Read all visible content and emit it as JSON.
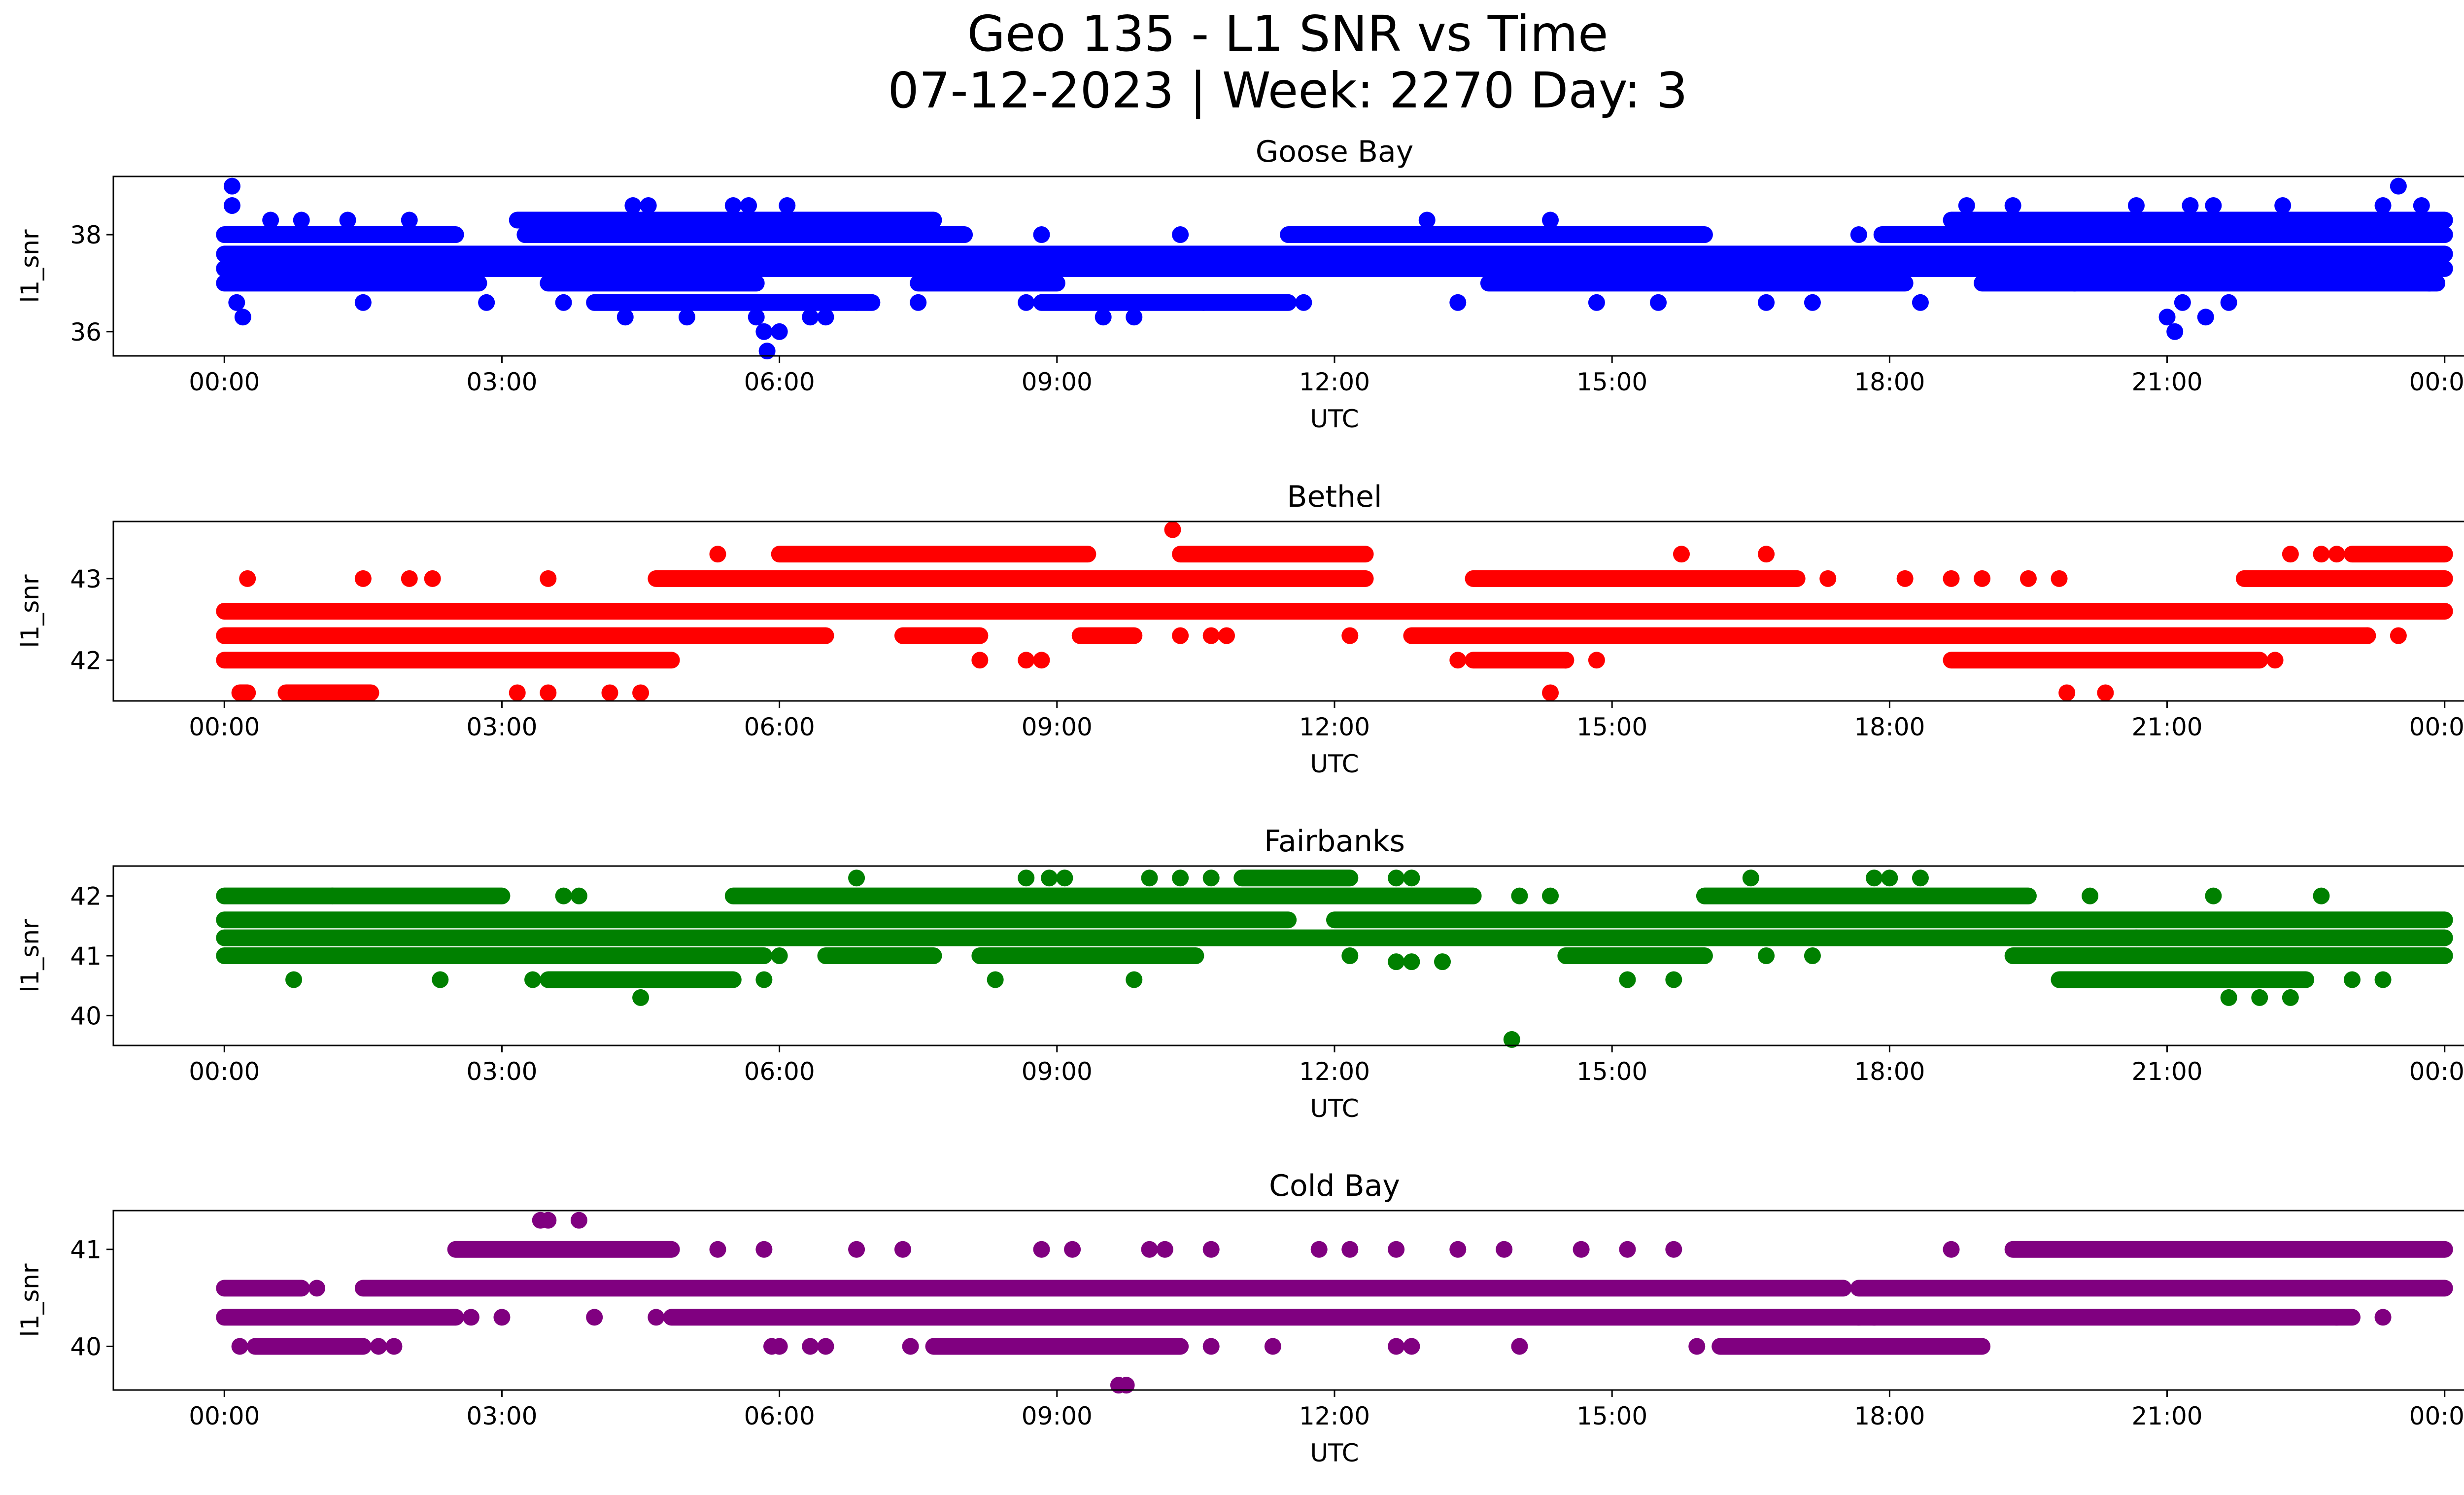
{
  "figure": {
    "title_line1": "Geo 135 - L1 SNR vs Time",
    "title_line2": "07-12-2023 | Week: 2270 Day: 3"
  },
  "chart_data": [
    {
      "type": "scatter",
      "title": "Goose Bay",
      "xlabel": "UTC",
      "ylabel": "l1_snr",
      "color": "#0000ff",
      "xlim": [
        "00:00",
        "24:00"
      ],
      "ylim": [
        35.5,
        39.2
      ],
      "x_ticks": [
        "00:00",
        "03:00",
        "06:00",
        "09:00",
        "12:00",
        "15:00",
        "18:00",
        "21:00",
        "00:00"
      ],
      "y_ticks": [
        36,
        38
      ],
      "levels": [
        36.3,
        36.6,
        37.0,
        37.3,
        37.6,
        38.0,
        38.3,
        38.6,
        39.0
      ],
      "bands": [
        {
          "y": 37.3,
          "segments": [
            [
              "00:00",
              "24:00"
            ]
          ]
        },
        {
          "y": 37.6,
          "segments": [
            [
              "00:00",
              "24:00"
            ]
          ]
        },
        {
          "y": 37.0,
          "segments": [
            [
              "00:00",
              "02:45"
            ],
            [
              "03:30",
              "05:45"
            ],
            [
              "07:30",
              "09:00"
            ],
            [
              "13:40",
              "18:10"
            ],
            [
              "19:00",
              "23:55"
            ]
          ]
        },
        {
          "y": 38.0,
          "segments": [
            [
              "00:00",
              "02:30"
            ],
            [
              "03:15",
              "08:00"
            ],
            [
              "11:30",
              "16:00"
            ],
            [
              "17:55",
              "24:00"
            ]
          ]
        },
        {
          "y": 36.6,
          "segments": [
            [
              "04:00",
              "07:00"
            ],
            [
              "08:50",
              "11:30"
            ]
          ]
        },
        {
          "y": 38.3,
          "segments": [
            [
              "03:10",
              "07:40"
            ],
            [
              "18:40",
              "24:00"
            ]
          ]
        }
      ],
      "points": [
        [
          "00:05",
          39.0
        ],
        [
          "00:05",
          38.6
        ],
        [
          "00:08",
          36.6
        ],
        [
          "00:12",
          36.3
        ],
        [
          "00:30",
          38.3
        ],
        [
          "00:50",
          38.3
        ],
        [
          "01:20",
          38.3
        ],
        [
          "01:30",
          36.6
        ],
        [
          "02:00",
          38.3
        ],
        [
          "02:50",
          36.6
        ],
        [
          "03:20",
          38.3
        ],
        [
          "03:40",
          36.6
        ],
        [
          "04:20",
          36.3
        ],
        [
          "04:25",
          38.6
        ],
        [
          "04:35",
          38.6
        ],
        [
          "05:00",
          36.3
        ],
        [
          "05:30",
          38.6
        ],
        [
          "05:40",
          38.6
        ],
        [
          "05:45",
          36.3
        ],
        [
          "05:50",
          36.0
        ],
        [
          "05:52",
          35.6
        ],
        [
          "06:00",
          36.0
        ],
        [
          "06:05",
          38.6
        ],
        [
          "06:20",
          36.3
        ],
        [
          "06:30",
          36.3
        ],
        [
          "06:50",
          36.6
        ],
        [
          "07:30",
          36.6
        ],
        [
          "08:40",
          36.6
        ],
        [
          "08:50",
          38.0
        ],
        [
          "09:30",
          36.3
        ],
        [
          "09:50",
          36.3
        ],
        [
          "10:20",
          38.0
        ],
        [
          "10:35",
          36.6
        ],
        [
          "11:40",
          36.6
        ],
        [
          "12:30",
          38.0
        ],
        [
          "13:00",
          38.3
        ],
        [
          "13:20",
          36.6
        ],
        [
          "14:20",
          38.3
        ],
        [
          "14:50",
          36.6
        ],
        [
          "15:30",
          36.6
        ],
        [
          "16:40",
          36.6
        ],
        [
          "17:10",
          36.6
        ],
        [
          "17:40",
          38.0
        ],
        [
          "18:20",
          36.6
        ],
        [
          "18:50",
          38.6
        ],
        [
          "19:20",
          38.6
        ],
        [
          "20:00",
          37.0
        ],
        [
          "20:40",
          38.6
        ],
        [
          "21:00",
          36.3
        ],
        [
          "21:05",
          36.0
        ],
        [
          "21:10",
          36.6
        ],
        [
          "21:15",
          38.6
        ],
        [
          "21:25",
          36.3
        ],
        [
          "21:30",
          38.6
        ],
        [
          "21:40",
          36.6
        ],
        [
          "22:15",
          38.6
        ],
        [
          "23:00",
          38.3
        ],
        [
          "23:20",
          38.6
        ],
        [
          "23:30",
          39.0
        ],
        [
          "23:45",
          38.6
        ],
        [
          "23:50",
          37.0
        ]
      ]
    },
    {
      "type": "scatter",
      "title": "Bethel",
      "xlabel": "UTC",
      "ylabel": "l1_snr",
      "color": "#ff0000",
      "xlim": [
        "00:00",
        "24:00"
      ],
      "ylim": [
        41.5,
        43.7
      ],
      "x_ticks": [
        "00:00",
        "03:00",
        "06:00",
        "09:00",
        "12:00",
        "15:00",
        "18:00",
        "21:00",
        "00:00"
      ],
      "y_ticks": [
        42,
        43
      ],
      "levels": [
        41.6,
        42.0,
        42.3,
        42.6,
        43.0,
        43.3,
        43.6
      ],
      "bands": [
        {
          "y": 42.3,
          "segments": [
            [
              "00:00",
              "06:30"
            ],
            [
              "07:20",
              "08:10"
            ],
            [
              "09:15",
              "09:50"
            ],
            [
              "12:50",
              "23:10"
            ]
          ]
        },
        {
          "y": 42.6,
          "segments": [
            [
              "00:00",
              "24:00"
            ]
          ]
        },
        {
          "y": 42.0,
          "segments": [
            [
              "00:00",
              "04:50"
            ],
            [
              "13:30",
              "14:30"
            ],
            [
              "18:40",
              "22:00"
            ]
          ]
        },
        {
          "y": 43.0,
          "segments": [
            [
              "04:40",
              "12:20"
            ],
            [
              "13:30",
              "17:00"
            ],
            [
              "21:50",
              "24:00"
            ]
          ]
        },
        {
          "y": 43.3,
          "segments": [
            [
              "06:00",
              "09:20"
            ],
            [
              "10:20",
              "12:20"
            ],
            [
              "23:00",
              "24:00"
            ]
          ]
        },
        {
          "y": 41.6,
          "segments": [
            [
              "00:10",
              "00:15"
            ],
            [
              "00:40",
              "01:35"
            ]
          ]
        }
      ],
      "points": [
        [
          "00:15",
          43.0
        ],
        [
          "01:30",
          43.0
        ],
        [
          "02:00",
          43.0
        ],
        [
          "02:15",
          43.0
        ],
        [
          "03:10",
          41.6
        ],
        [
          "03:30",
          43.0
        ],
        [
          "03:30",
          41.6
        ],
        [
          "04:10",
          41.6
        ],
        [
          "04:30",
          41.6
        ],
        [
          "05:20",
          43.3
        ],
        [
          "08:10",
          42.0
        ],
        [
          "08:40",
          42.0
        ],
        [
          "08:50",
          42.0
        ],
        [
          "10:15",
          43.6
        ],
        [
          "10:20",
          42.3
        ],
        [
          "10:40",
          42.3
        ],
        [
          "10:50",
          42.3
        ],
        [
          "12:10",
          42.3
        ],
        [
          "13:20",
          42.0
        ],
        [
          "14:20",
          41.6
        ],
        [
          "14:30",
          42.0
        ],
        [
          "14:50",
          42.0
        ],
        [
          "15:45",
          43.3
        ],
        [
          "16:40",
          43.3
        ],
        [
          "17:20",
          43.0
        ],
        [
          "18:10",
          43.0
        ],
        [
          "18:40",
          43.0
        ],
        [
          "19:00",
          43.0
        ],
        [
          "19:30",
          43.0
        ],
        [
          "19:50",
          43.0
        ],
        [
          "19:55",
          41.6
        ],
        [
          "20:20",
          41.6
        ],
        [
          "22:10",
          42.0
        ],
        [
          "22:20",
          43.3
        ],
        [
          "22:40",
          43.3
        ],
        [
          "22:50",
          43.3
        ],
        [
          "23:10",
          42.3
        ],
        [
          "23:30",
          42.3
        ]
      ]
    },
    {
      "type": "scatter",
      "title": "Fairbanks",
      "xlabel": "UTC",
      "ylabel": "l1_snr",
      "color": "#008000",
      "xlim": [
        "00:00",
        "24:00"
      ],
      "ylim": [
        39.5,
        42.5
      ],
      "x_ticks": [
        "00:00",
        "03:00",
        "06:00",
        "09:00",
        "12:00",
        "15:00",
        "18:00",
        "21:00",
        "00:00"
      ],
      "y_ticks": [
        40,
        41,
        42
      ],
      "levels": [
        39.6,
        40.3,
        40.6,
        41.0,
        41.3,
        41.6,
        42.0,
        42.3
      ],
      "bands": [
        {
          "y": 41.3,
          "segments": [
            [
              "00:00",
              "24:00"
            ]
          ]
        },
        {
          "y": 41.6,
          "segments": [
            [
              "00:00",
              "11:30"
            ],
            [
              "12:00",
              "24:00"
            ]
          ]
        },
        {
          "y": 41.0,
          "segments": [
            [
              "00:00",
              "05:50"
            ],
            [
              "06:30",
              "07:40"
            ],
            [
              "08:10",
              "10:30"
            ],
            [
              "14:30",
              "16:00"
            ],
            [
              "19:20",
              "24:00"
            ]
          ]
        },
        {
          "y": 42.0,
          "segments": [
            [
              "00:00",
              "03:00"
            ],
            [
              "05:30",
              "13:30"
            ],
            [
              "16:00",
              "19:30"
            ]
          ]
        },
        {
          "y": 40.6,
          "segments": [
            [
              "03:30",
              "05:30"
            ],
            [
              "19:50",
              "22:30"
            ]
          ]
        },
        {
          "y": 42.3,
          "segments": [
            [
              "11:00",
              "12:10"
            ]
          ]
        }
      ],
      "points": [
        [
          "00:45",
          40.6
        ],
        [
          "01:10",
          42.0
        ],
        [
          "02:20",
          40.6
        ],
        [
          "03:20",
          40.6
        ],
        [
          "03:40",
          42.0
        ],
        [
          "03:50",
          42.0
        ],
        [
          "04:30",
          40.3
        ],
        [
          "05:50",
          40.6
        ],
        [
          "06:00",
          41.0
        ],
        [
          "06:50",
          42.3
        ],
        [
          "07:20",
          41.0
        ],
        [
          "07:30",
          41.0
        ],
        [
          "08:20",
          40.6
        ],
        [
          "08:40",
          42.3
        ],
        [
          "08:55",
          42.3
        ],
        [
          "09:05",
          42.3
        ],
        [
          "09:50",
          40.6
        ],
        [
          "10:00",
          42.3
        ],
        [
          "10:20",
          42.3
        ],
        [
          "10:40",
          42.3
        ],
        [
          "12:10",
          41.0
        ],
        [
          "12:40",
          42.3
        ],
        [
          "12:50",
          42.3
        ],
        [
          "12:40",
          40.9
        ],
        [
          "12:50",
          40.9
        ],
        [
          "13:10",
          40.9
        ],
        [
          "13:55",
          39.6
        ],
        [
          "14:00",
          42.0
        ],
        [
          "14:20",
          42.0
        ],
        [
          "15:10",
          40.6
        ],
        [
          "15:40",
          40.6
        ],
        [
          "16:30",
          42.3
        ],
        [
          "16:40",
          41.0
        ],
        [
          "17:10",
          41.0
        ],
        [
          "17:50",
          42.3
        ],
        [
          "18:00",
          42.3
        ],
        [
          "18:20",
          42.3
        ],
        [
          "20:10",
          42.0
        ],
        [
          "20:40",
          41.3
        ],
        [
          "21:40",
          40.3
        ],
        [
          "22:00",
          40.3
        ],
        [
          "22:20",
          40.3
        ],
        [
          "21:30",
          42.0
        ],
        [
          "22:40",
          42.0
        ],
        [
          "23:00",
          40.6
        ],
        [
          "23:20",
          40.6
        ]
      ]
    },
    {
      "type": "scatter",
      "title": "Cold Bay",
      "xlabel": "UTC",
      "ylabel": "l1_snr",
      "color": "#800080",
      "xlim": [
        "00:00",
        "24:00"
      ],
      "ylim": [
        39.55,
        41.4
      ],
      "x_ticks": [
        "00:00",
        "03:00",
        "06:00",
        "09:00",
        "12:00",
        "15:00",
        "18:00",
        "21:00",
        "00:00"
      ],
      "y_ticks": [
        40,
        41
      ],
      "levels": [
        39.6,
        40.0,
        40.3,
        40.6,
        41.0,
        41.3
      ],
      "bands": [
        {
          "y": 40.6,
          "segments": [
            [
              "00:00",
              "00:50"
            ],
            [
              "01:30",
              "17:30"
            ],
            [
              "17:40",
              "24:00"
            ]
          ]
        },
        {
          "y": 40.3,
          "segments": [
            [
              "00:00",
              "02:30"
            ],
            [
              "04:50",
              "23:00"
            ]
          ]
        },
        {
          "y": 41.0,
          "segments": [
            [
              "02:30",
              "04:50"
            ],
            [
              "19:20",
              "24:00"
            ]
          ]
        },
        {
          "y": 40.0,
          "segments": [
            [
              "00:20",
              "01:30"
            ],
            [
              "07:40",
              "10:20"
            ],
            [
              "16:10",
              "19:00"
            ]
          ]
        }
      ],
      "points": [
        [
          "00:10",
          40.0
        ],
        [
          "01:00",
          40.6
        ],
        [
          "01:40",
          40.0
        ],
        [
          "01:50",
          40.0
        ],
        [
          "02:40",
          40.3
        ],
        [
          "03:00",
          40.3
        ],
        [
          "03:25",
          41.3
        ],
        [
          "03:30",
          41.3
        ],
        [
          "03:50",
          41.3
        ],
        [
          "04:00",
          40.3
        ],
        [
          "04:40",
          40.3
        ],
        [
          "05:20",
          41.0
        ],
        [
          "05:50",
          41.0
        ],
        [
          "05:55",
          40.0
        ],
        [
          "06:00",
          40.0
        ],
        [
          "06:20",
          40.0
        ],
        [
          "06:30",
          40.0
        ],
        [
          "06:50",
          41.0
        ],
        [
          "07:20",
          41.0
        ],
        [
          "07:25",
          40.0
        ],
        [
          "08:50",
          41.0
        ],
        [
          "09:10",
          41.0
        ],
        [
          "09:40",
          39.6
        ],
        [
          "09:45",
          39.6
        ],
        [
          "10:00",
          41.0
        ],
        [
          "10:10",
          41.0
        ],
        [
          "10:40",
          40.0
        ],
        [
          "10:40",
          41.0
        ],
        [
          "11:20",
          40.0
        ],
        [
          "11:50",
          41.0
        ],
        [
          "12:10",
          41.0
        ],
        [
          "12:40",
          41.0
        ],
        [
          "12:40",
          40.0
        ],
        [
          "12:50",
          40.0
        ],
        [
          "13:20",
          41.0
        ],
        [
          "13:50",
          41.0
        ],
        [
          "14:00",
          40.0
        ],
        [
          "14:40",
          41.0
        ],
        [
          "15:10",
          41.0
        ],
        [
          "15:40",
          41.0
        ],
        [
          "15:55",
          40.0
        ],
        [
          "17:40",
          40.3
        ],
        [
          "17:50",
          40.3
        ],
        [
          "18:40",
          41.0
        ],
        [
          "22:50",
          40.3
        ],
        [
          "23:20",
          40.3
        ]
      ]
    }
  ]
}
